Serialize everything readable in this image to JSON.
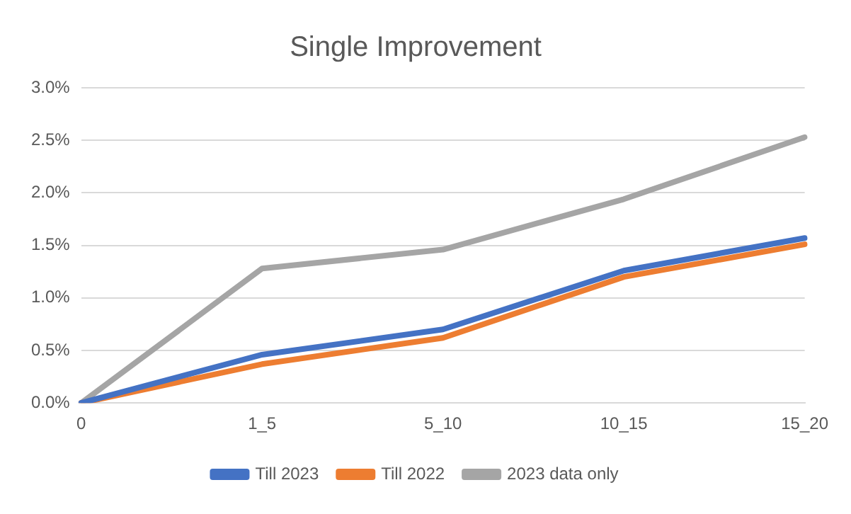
{
  "chart_data": {
    "type": "line",
    "title": "Single Improvement",
    "categories": [
      "0",
      "1_5",
      "5_10",
      "10_15",
      "15_20"
    ],
    "series": [
      {
        "name": "Till 2023",
        "color": "#4472c4",
        "values": [
          0,
          0.46,
          0.7,
          1.26,
          1.57
        ]
      },
      {
        "name": "Till 2022",
        "color": "#ed7d31",
        "values": [
          0,
          0.37,
          0.62,
          1.2,
          1.51
        ]
      },
      {
        "name": "2023 data only",
        "color": "#a5a5a5",
        "values": [
          0,
          1.28,
          1.46,
          1.94,
          2.53
        ]
      }
    ],
    "ylim": [
      0,
      3
    ],
    "yticks": [
      {
        "value": 0,
        "label": "0.0%"
      },
      {
        "value": 0.5,
        "label": "0.5%"
      },
      {
        "value": 1,
        "label": "1.0%"
      },
      {
        "value": 1.5,
        "label": "1.5%"
      },
      {
        "value": 2,
        "label": "2.0%"
      },
      {
        "value": 2.5,
        "label": "2.5%"
      },
      {
        "value": 3,
        "label": "3.0%"
      }
    ],
    "grid": "y",
    "legend": "bottom",
    "marker": "none",
    "line_style": "solid"
  }
}
